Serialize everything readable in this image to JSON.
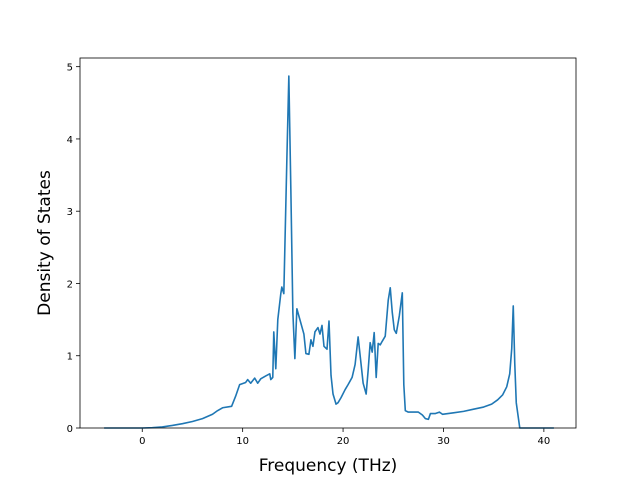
{
  "chart_data": {
    "type": "line",
    "title": "",
    "xlabel": "Frequency (THz)",
    "ylabel": "Density of States",
    "xlim": [
      -6.2,
      43.2
    ],
    "ylim": [
      0,
      5.12
    ],
    "xticks": [
      0,
      10,
      20,
      30,
      40
    ],
    "yticks": [
      0,
      1,
      2,
      3,
      4,
      5
    ],
    "grid": false,
    "legend": "none",
    "line_color": "#1f77b4",
    "series": [
      {
        "points": [
          [
            -3.8,
            0.0
          ],
          [
            0.0,
            0.0
          ],
          [
            1.0,
            0.005
          ],
          [
            2.0,
            0.015
          ],
          [
            3.0,
            0.035
          ],
          [
            4.0,
            0.06
          ],
          [
            5.0,
            0.09
          ],
          [
            6.0,
            0.13
          ],
          [
            7.0,
            0.19
          ],
          [
            7.5,
            0.24
          ],
          [
            8.0,
            0.28
          ],
          [
            8.9,
            0.3
          ],
          [
            9.3,
            0.44
          ],
          [
            9.7,
            0.6
          ],
          [
            10.3,
            0.63
          ],
          [
            10.5,
            0.67
          ],
          [
            10.8,
            0.62
          ],
          [
            11.2,
            0.69
          ],
          [
            11.5,
            0.62
          ],
          [
            11.8,
            0.68
          ],
          [
            12.3,
            0.72
          ],
          [
            12.7,
            0.75
          ],
          [
            12.8,
            0.67
          ],
          [
            13.0,
            0.7
          ],
          [
            13.1,
            1.33
          ],
          [
            13.3,
            0.82
          ],
          [
            13.5,
            1.5
          ],
          [
            13.8,
            1.86
          ],
          [
            13.9,
            1.95
          ],
          [
            14.1,
            1.86
          ],
          [
            14.4,
            3.7
          ],
          [
            14.6,
            4.87
          ],
          [
            14.8,
            3.3
          ],
          [
            15.0,
            1.6
          ],
          [
            15.2,
            0.96
          ],
          [
            15.4,
            1.65
          ],
          [
            15.7,
            1.5
          ],
          [
            16.1,
            1.3
          ],
          [
            16.3,
            1.03
          ],
          [
            16.6,
            1.02
          ],
          [
            16.8,
            1.22
          ],
          [
            17.0,
            1.13
          ],
          [
            17.2,
            1.33
          ],
          [
            17.5,
            1.39
          ],
          [
            17.7,
            1.3
          ],
          [
            17.9,
            1.42
          ],
          [
            18.1,
            1.13
          ],
          [
            18.4,
            1.09
          ],
          [
            18.6,
            1.48
          ],
          [
            18.8,
            0.73
          ],
          [
            19.0,
            0.47
          ],
          [
            19.3,
            0.33
          ],
          [
            19.5,
            0.35
          ],
          [
            19.8,
            0.42
          ],
          [
            20.2,
            0.53
          ],
          [
            20.5,
            0.6
          ],
          [
            20.9,
            0.7
          ],
          [
            21.2,
            0.88
          ],
          [
            21.5,
            1.26
          ],
          [
            22.0,
            0.62
          ],
          [
            22.3,
            0.47
          ],
          [
            22.5,
            0.8
          ],
          [
            22.7,
            1.18
          ],
          [
            22.9,
            1.05
          ],
          [
            23.1,
            1.32
          ],
          [
            23.3,
            0.7
          ],
          [
            23.5,
            1.17
          ],
          [
            23.7,
            1.15
          ],
          [
            23.9,
            1.2
          ],
          [
            24.2,
            1.27
          ],
          [
            24.5,
            1.77
          ],
          [
            24.7,
            1.94
          ],
          [
            24.9,
            1.6
          ],
          [
            25.1,
            1.36
          ],
          [
            25.3,
            1.31
          ],
          [
            25.6,
            1.55
          ],
          [
            25.9,
            1.87
          ],
          [
            26.05,
            0.6
          ],
          [
            26.2,
            0.24
          ],
          [
            26.5,
            0.22
          ],
          [
            27.5,
            0.22
          ],
          [
            27.9,
            0.18
          ],
          [
            28.2,
            0.13
          ],
          [
            28.5,
            0.12
          ],
          [
            28.7,
            0.2
          ],
          [
            29.2,
            0.2
          ],
          [
            29.6,
            0.22
          ],
          [
            29.9,
            0.19
          ],
          [
            31.0,
            0.21
          ],
          [
            32.0,
            0.23
          ],
          [
            33.0,
            0.26
          ],
          [
            34.0,
            0.29
          ],
          [
            34.8,
            0.33
          ],
          [
            35.4,
            0.39
          ],
          [
            35.9,
            0.46
          ],
          [
            36.3,
            0.57
          ],
          [
            36.6,
            0.75
          ],
          [
            36.8,
            1.1
          ],
          [
            36.95,
            1.69
          ],
          [
            37.1,
            0.9
          ],
          [
            37.25,
            0.35
          ],
          [
            37.6,
            0.0
          ],
          [
            41.0,
            0.0
          ]
        ]
      }
    ]
  }
}
